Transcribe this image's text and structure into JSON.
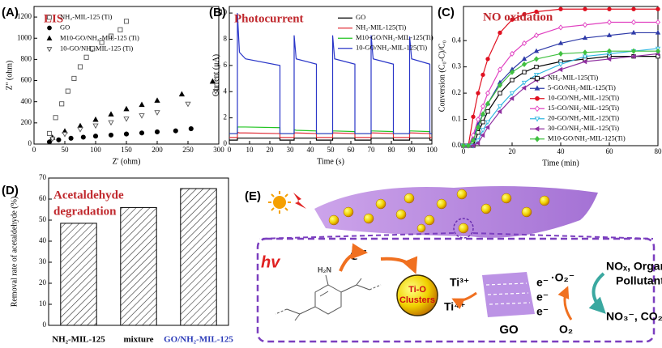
{
  "chart_data": [
    {
      "type": "scatter",
      "panel_label": "(A)",
      "title": "EIS",
      "title_color": "#c0282d",
      "x_label": "Z' (ohm)",
      "y_label": "Z'' (ohm)",
      "xlim": [
        0,
        300
      ],
      "xticks": [
        0,
        50,
        100,
        150,
        200,
        250,
        300
      ],
      "ylim": [
        0,
        1300
      ],
      "yticks": [
        0,
        200,
        400,
        600,
        800,
        1000,
        1200
      ],
      "legend": "upper left",
      "series": [
        {
          "name": "NH₂-MIL-125 (Ti)",
          "marker": "square-open",
          "color": "#555555",
          "x": [
            25,
            35,
            45,
            55,
            65,
            75,
            85,
            95,
            110,
            125,
            140,
            150
          ],
          "y": [
            100,
            250,
            380,
            500,
            620,
            730,
            820,
            900,
            960,
            1020,
            1080,
            1160
          ]
        },
        {
          "name": "GO",
          "marker": "circle",
          "color": "#000000",
          "x": [
            25,
            40,
            60,
            80,
            100,
            125,
            150,
            175,
            200,
            230,
            255
          ],
          "y": [
            20,
            40,
            55,
            65,
            75,
            85,
            95,
            105,
            115,
            125,
            145
          ]
        },
        {
          "name": "M10-GO/NH₂-MIL-125 (Ti)",
          "marker": "triangle",
          "color": "#000000",
          "x": [
            30,
            50,
            75,
            100,
            125,
            150,
            175,
            200,
            240,
            290
          ],
          "y": [
            60,
            120,
            170,
            230,
            280,
            330,
            370,
            410,
            470,
            590
          ]
        },
        {
          "name": "10-GO/NH₂-MIL-125 (Ti)",
          "marker": "triangle-down-open",
          "color": "#555555",
          "x": [
            30,
            50,
            75,
            100,
            125,
            150,
            175,
            200,
            250,
            295
          ],
          "y": [
            50,
            95,
            140,
            175,
            205,
            240,
            270,
            300,
            380,
            500
          ]
        }
      ]
    },
    {
      "type": "line",
      "panel_label": "(B)",
      "title": "Photocurrent",
      "title_color": "#c0282d",
      "x_label": "Time (s)",
      "y_label": "Current (μA)",
      "xlim": [
        0,
        100
      ],
      "xticks": [
        0,
        10,
        20,
        30,
        40,
        50,
        60,
        70,
        80,
        90,
        100
      ],
      "ylim": [
        0,
        10.5
      ],
      "yticks": [
        0,
        2,
        4,
        6,
        8,
        10
      ],
      "legend": "upper right",
      "x": [
        0,
        4,
        4,
        5,
        8,
        25,
        25,
        32,
        32,
        33,
        43,
        43,
        51,
        51,
        52,
        62,
        62,
        70,
        70,
        71,
        81,
        81,
        89,
        89,
        90,
        99,
        99,
        100
      ],
      "series": [
        {
          "name": "GO",
          "color": "#000000",
          "values": [
            0.3,
            0.3,
            0.45,
            0.45,
            0.45,
            0.45,
            0.3,
            0.3,
            0.45,
            0.45,
            0.45,
            0.3,
            0.3,
            0.45,
            0.45,
            0.45,
            0.3,
            0.3,
            0.45,
            0.45,
            0.45,
            0.3,
            0.3,
            0.45,
            0.45,
            0.45,
            0.3,
            0.3
          ]
        },
        {
          "name": "NH₂-MIL-125(Ti)",
          "color": "#e0303a",
          "values": [
            0.5,
            0.5,
            0.9,
            0.85,
            0.85,
            0.8,
            0.5,
            0.5,
            0.85,
            0.85,
            0.8,
            0.5,
            0.5,
            0.85,
            0.85,
            0.8,
            0.5,
            0.5,
            0.85,
            0.85,
            0.8,
            0.5,
            0.5,
            0.85,
            0.85,
            0.8,
            0.5,
            0.5
          ]
        },
        {
          "name": "M10-GO/NH₂-MIL-125(Ti)",
          "color": "#22c422",
          "values": [
            0.8,
            0.8,
            1.3,
            1.3,
            1.3,
            1.25,
            0.8,
            0.8,
            1.1,
            1.05,
            1.0,
            0.8,
            0.8,
            1.0,
            1.0,
            0.95,
            0.8,
            0.8,
            1.0,
            1.0,
            0.95,
            0.8,
            0.8,
            1.0,
            1.0,
            0.95,
            0.8,
            0.8
          ]
        },
        {
          "name": "10-GO/NH₂-MIL-125(Ti)",
          "color": "#2a36c8",
          "values": [
            0.8,
            0.8,
            10,
            7,
            6.5,
            6.0,
            0.8,
            0.8,
            8.3,
            6.5,
            6.1,
            0.8,
            0.8,
            8.3,
            6.5,
            6.1,
            0.8,
            0.8,
            8.3,
            6.5,
            6.1,
            0.8,
            0.8,
            8.2,
            6.5,
            6.1,
            0.8,
            0.8
          ]
        }
      ]
    },
    {
      "type": "line",
      "panel_label": "(C)",
      "title": "NO oxidation",
      "title_color": "#c0282d",
      "x_label": "Time (min)",
      "y_label": "Conversion (C₀-C)/C₀",
      "xlim": [
        0,
        80
      ],
      "xticks": [
        0,
        20,
        40,
        60,
        80
      ],
      "ylim": [
        0,
        0.53
      ],
      "yticks": [
        {
          "value": 0,
          "label": "0.0"
        },
        0.1,
        0.2,
        0.3,
        0.4
      ],
      "legend": "lower right",
      "x": [
        0,
        2,
        4,
        6,
        8,
        10,
        15,
        20,
        25,
        30,
        40,
        50,
        60,
        70,
        80
      ],
      "series": [
        {
          "name": "NH₂-MIL-125(Ti)",
          "marker": "square-open",
          "color": "#000000",
          "values": [
            0,
            0,
            0,
            0.05,
            0.09,
            0.13,
            0.2,
            0.25,
            0.28,
            0.3,
            0.32,
            0.33,
            0.34,
            0.34,
            0.34
          ]
        },
        {
          "name": "5-GO/NH₂-MIL-125(Ti)",
          "marker": "triangle",
          "color": "#2e3aa8",
          "values": [
            0,
            0,
            0.03,
            0.08,
            0.12,
            0.16,
            0.24,
            0.29,
            0.33,
            0.36,
            0.39,
            0.41,
            0.42,
            0.43,
            0.43
          ]
        },
        {
          "name": "10-GO/NH₂-MIL-125(Ti)",
          "marker": "circle",
          "color": "#e01020",
          "values": [
            0,
            0,
            0.11,
            0.2,
            0.27,
            0.33,
            0.43,
            0.48,
            0.5,
            0.51,
            0.52,
            0.52,
            0.52,
            0.52,
            0.52
          ]
        },
        {
          "name": "15-GO/NH₂-MIL-125(Ti)",
          "marker": "diamond-open",
          "color": "#e040c0",
          "values": [
            0,
            0,
            0.04,
            0.1,
            0.15,
            0.2,
            0.29,
            0.35,
            0.39,
            0.42,
            0.45,
            0.46,
            0.47,
            0.47,
            0.47
          ]
        },
        {
          "name": "20-GO/NH₂-MIL-125(Ti)",
          "marker": "triangle-down-open",
          "color": "#30b8e0",
          "values": [
            0,
            0,
            0,
            0.02,
            0.06,
            0.09,
            0.15,
            0.2,
            0.24,
            0.27,
            0.31,
            0.34,
            0.35,
            0.36,
            0.37
          ]
        },
        {
          "name": "30-GO/NH₂-MIL-125(Ti)",
          "marker": "triangle-left",
          "color": "#9030a0",
          "values": [
            0,
            0,
            0,
            0.01,
            0.04,
            0.07,
            0.13,
            0.18,
            0.22,
            0.25,
            0.29,
            0.32,
            0.33,
            0.34,
            0.35
          ]
        },
        {
          "name": "M10-GO/NH₂-MIL-125(Ti)",
          "marker": "diamond",
          "color": "#40c040",
          "values": [
            0,
            0,
            0.02,
            0.07,
            0.12,
            0.16,
            0.23,
            0.28,
            0.31,
            0.33,
            0.35,
            0.355,
            0.36,
            0.36,
            0.36
          ]
        }
      ]
    },
    {
      "type": "bar",
      "panel_label": "(D)",
      "title": [
        "Acetaldehyde",
        "degradation"
      ],
      "title_color": "#c0282d",
      "y_label": "Removal rate of acetaldehyde (%)",
      "categories": [
        "NH₂-MIL-125",
        "mixture",
        "GO/NH₂-MIL-125"
      ],
      "category_colors": [
        "#000000",
        "#000000",
        "#2a3ab8"
      ],
      "values": [
        48.5,
        56,
        65
      ],
      "hatch": true,
      "ylim": [
        0,
        70
      ],
      "yticks": [
        0,
        10,
        20,
        30,
        40,
        50,
        60,
        70
      ]
    }
  ],
  "diagram": {
    "panel_label": "(E)",
    "hv": "hv",
    "electron": "e⁻",
    "amine": "H₂N",
    "cluster": [
      "Ti-O",
      "Clusters"
    ],
    "ti3": "Ti³⁺",
    "ti4": "Ti⁴⁺",
    "go": "GO",
    "electrons": [
      "e⁻",
      "e⁻",
      "e⁻"
    ],
    "superoxide": "·O₂⁻",
    "oxygen": "O₂",
    "pollutants": [
      "NOₓ, Organic",
      "Pollutants"
    ],
    "products": "NO₃⁻, CO₂"
  }
}
